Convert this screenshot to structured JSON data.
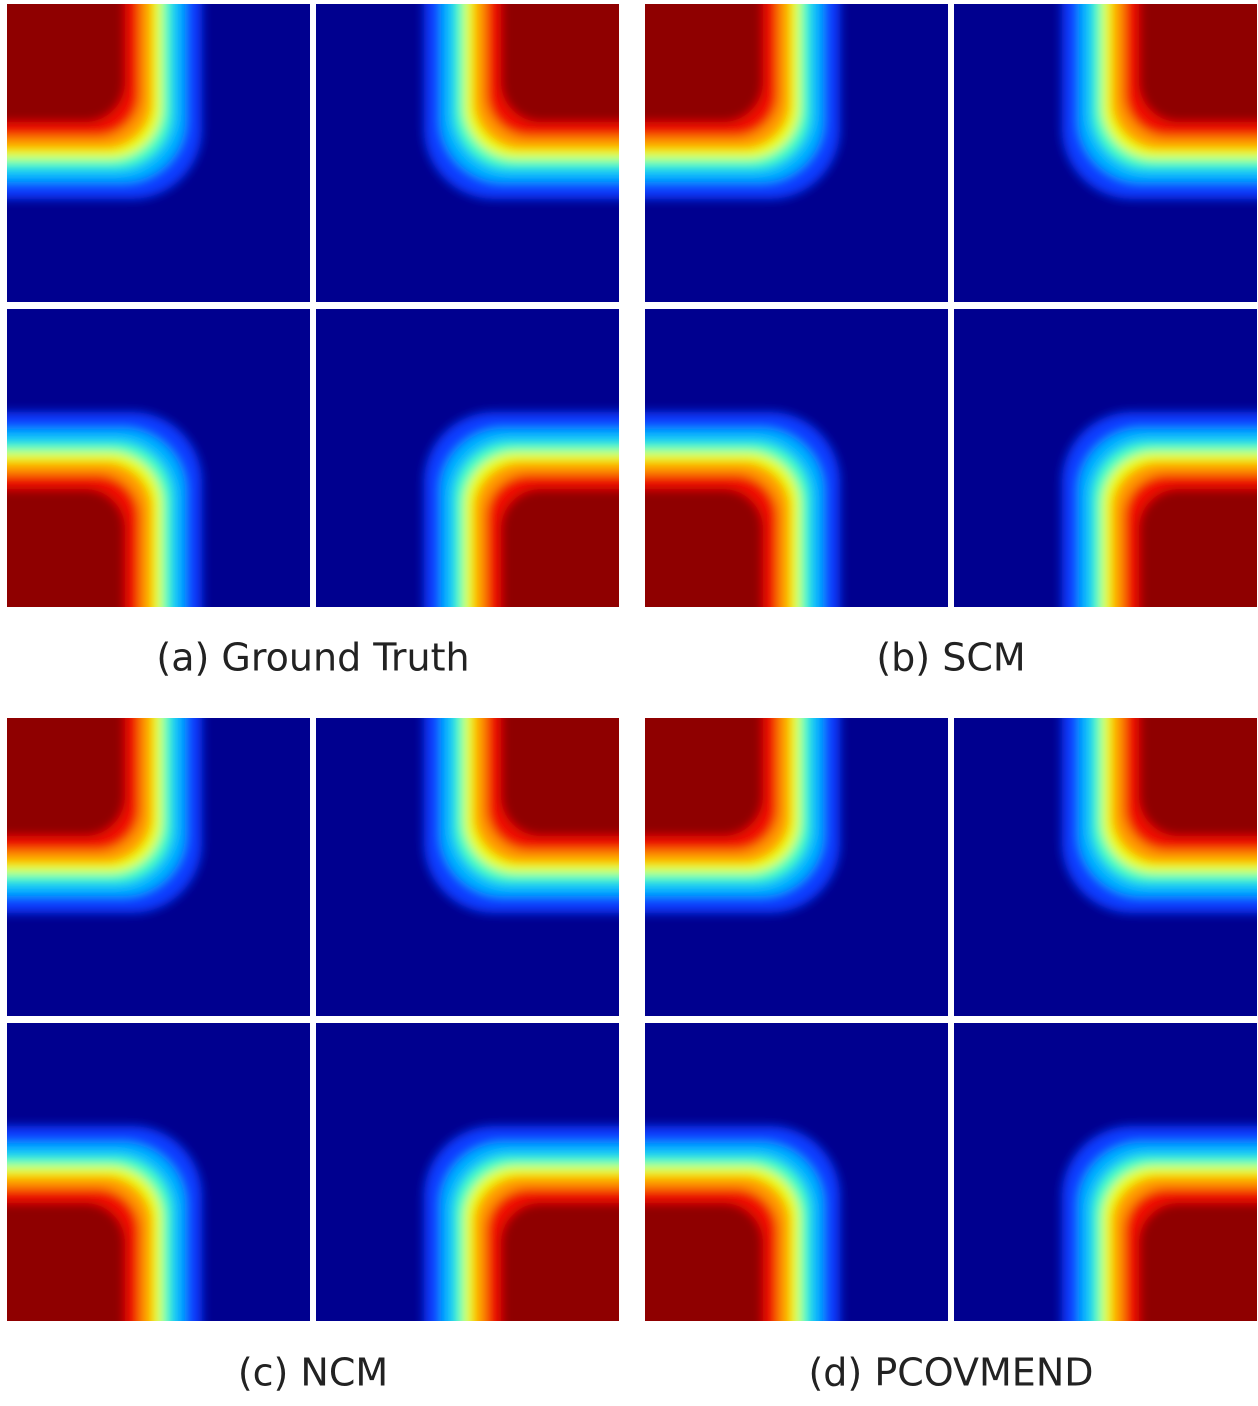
{
  "figure": {
    "captions": [
      "(a) Ground Truth",
      "(b) SCM",
      "(c) NCM",
      "(d) PCOVMEND"
    ]
  }
}
